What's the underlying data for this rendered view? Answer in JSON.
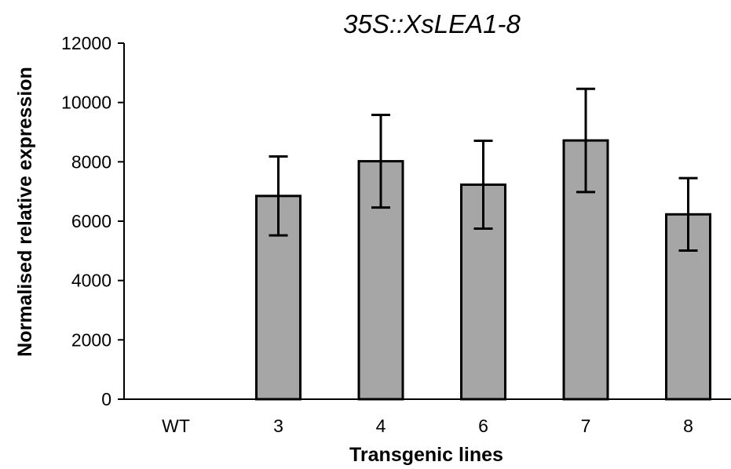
{
  "chart_data": {
    "type": "bar",
    "title": "35S::XsLEA1-8",
    "xlabel": "Transgenic lines",
    "ylabel": "Normalised relative expression",
    "categories": [
      "WT",
      "3",
      "4",
      "6",
      "7",
      "8"
    ],
    "values": [
      0,
      6850,
      8020,
      7230,
      8720,
      6230
    ],
    "errors": [
      0,
      1330,
      1560,
      1480,
      1740,
      1220
    ],
    "ylim": [
      0,
      12000
    ],
    "yticks": [
      0,
      2000,
      4000,
      6000,
      8000,
      10000,
      12000
    ],
    "grid": false,
    "legend": "none",
    "bar_color": "#a6a6a6",
    "edge_color": "#000000"
  }
}
